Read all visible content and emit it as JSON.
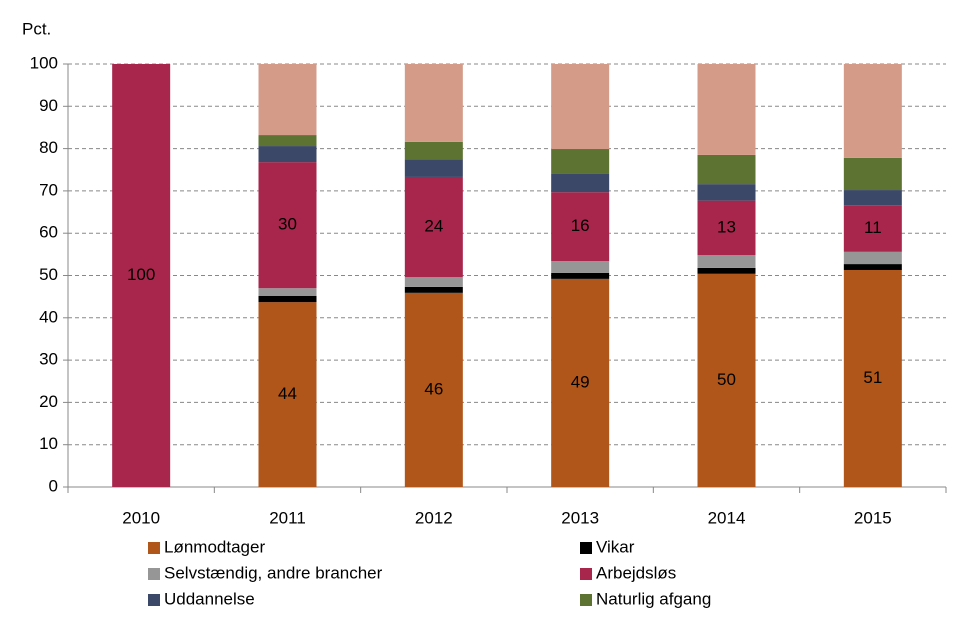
{
  "chart_data": {
    "type": "stacked_bar",
    "y_axis_label": "Pct.",
    "categories": [
      "2010",
      "2011",
      "2012",
      "2013",
      "2014",
      "2015"
    ],
    "ylim": [
      0,
      100
    ],
    "yticks": [
      0,
      10,
      20,
      30,
      40,
      50,
      60,
      70,
      80,
      90,
      100
    ],
    "grid": true,
    "series": [
      {
        "name": "Lønmodtager",
        "color": "#b0561a",
        "values": [
          0,
          43.7,
          45.9,
          49.2,
          50.4,
          51.3
        ],
        "value_labels": [
          null,
          "44",
          "46",
          "49",
          "50",
          "51"
        ]
      },
      {
        "name": "Vikar",
        "color": "#000000",
        "values": [
          0,
          1.5,
          1.4,
          1.4,
          1.4,
          1.4
        ]
      },
      {
        "name": "Selvstændig, andre brancher",
        "color": "#969696",
        "values": [
          0,
          1.8,
          2.3,
          2.8,
          3.0,
          2.9
        ]
      },
      {
        "name": "Arbejdsløs",
        "color": "#a8264c",
        "values": [
          100,
          29.8,
          23.7,
          16.3,
          12.9,
          11.0
        ],
        "value_labels": [
          "100",
          "30",
          "24",
          "16",
          "13",
          "11"
        ]
      },
      {
        "name": "Uddannelse",
        "color": "#3c4868",
        "values": [
          0,
          3.8,
          4.2,
          4.3,
          3.9,
          3.6
        ]
      },
      {
        "name": "Naturlig afgang",
        "color": "#5d7332",
        "values": [
          0,
          2.6,
          4.1,
          5.9,
          6.9,
          7.6
        ]
      },
      {
        "color": "#d49b88",
        "values": [
          0,
          16.8,
          18.4,
          20.1,
          21.5,
          22.2
        ]
      }
    ]
  }
}
